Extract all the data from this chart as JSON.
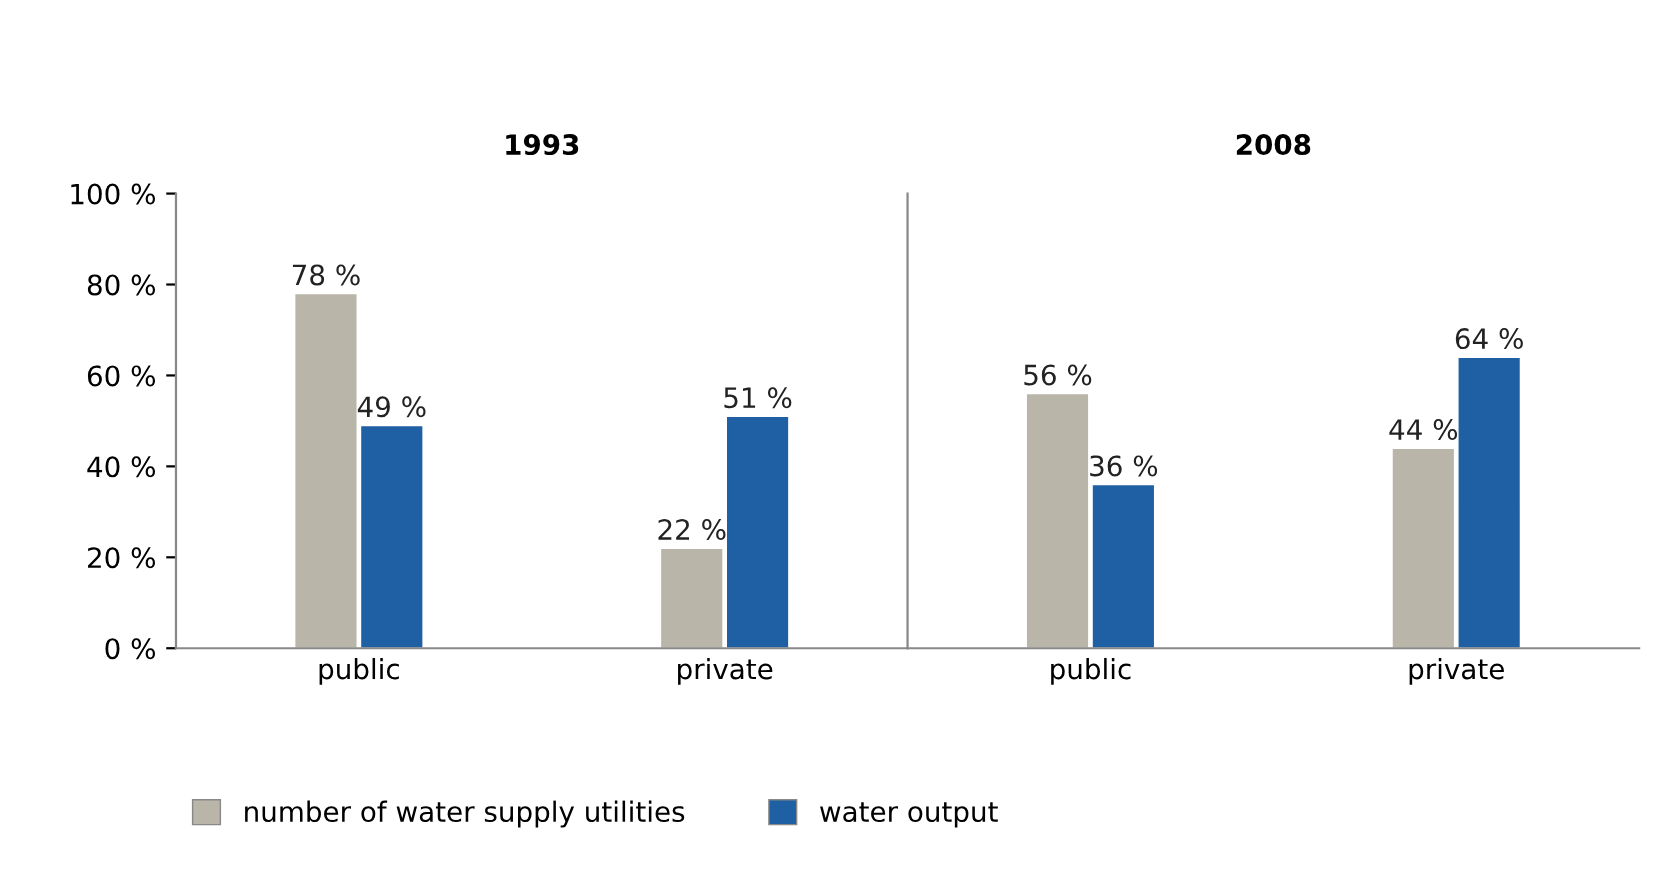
{
  "chart_data": [
    {
      "type": "bar",
      "title": "1993",
      "categories": [
        "public",
        "private"
      ],
      "series": [
        {
          "name": "number of water supply utilities",
          "color": "#b9b5a9",
          "values": [
            78,
            22
          ],
          "value_labels": [
            "78 %",
            "22 %"
          ]
        },
        {
          "name": "water output",
          "color": "#1f5fa3",
          "values": [
            49,
            51
          ],
          "value_labels": [
            "49 %",
            "51 %"
          ]
        }
      ],
      "ylim": [
        0,
        100
      ],
      "yticks": [
        {
          "value": 0,
          "label": "0 %"
        },
        {
          "value": 20,
          "label": "20 %"
        },
        {
          "value": 40,
          "label": "40 %"
        },
        {
          "value": 60,
          "label": "60 %"
        },
        {
          "value": 80,
          "label": "80 %"
        },
        {
          "value": 100,
          "label": "100 %"
        }
      ],
      "grid": false,
      "legend": "bottom"
    },
    {
      "type": "bar",
      "title": "2008",
      "categories": [
        "public",
        "private"
      ],
      "series": [
        {
          "color": "#b9b5a9",
          "values": [
            56,
            44
          ],
          "value_labels": [
            "56 %",
            "44 %"
          ]
        },
        {
          "color": "#1f5fa3",
          "values": [
            36,
            64
          ],
          "value_labels": [
            "36 %",
            "64 %"
          ]
        }
      ],
      "ylim": [
        0,
        100
      ],
      "tick_labels": "x",
      "grid": false
    }
  ]
}
